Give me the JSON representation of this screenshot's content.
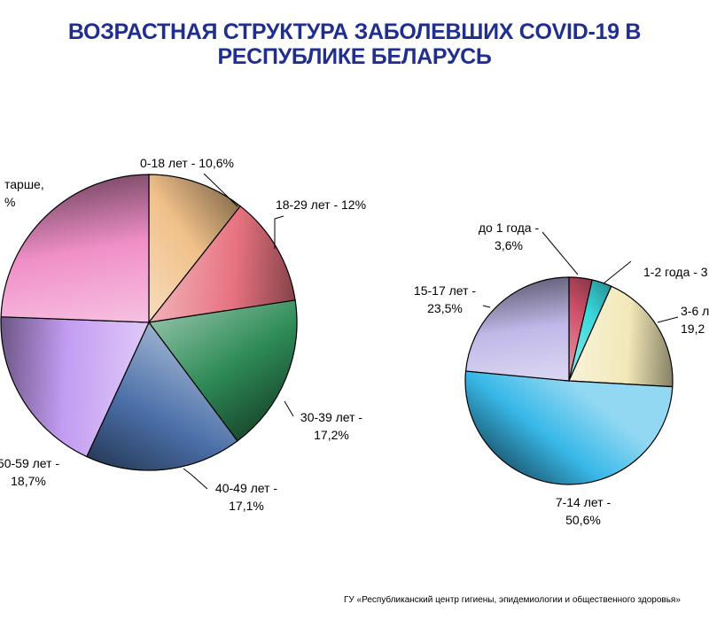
{
  "title": {
    "line1": "ВОЗРАСТНАЯ СТРУКТУРА ЗАБОЛЕВШИХ COVID-19 В",
    "line2": "РЕСПУБЛИКЕ БЕЛАРУСЬ"
  },
  "footer": "ГУ «Республиканский центр гигиены, эпидемиологии и общественного здоровья»",
  "chart_data": [
    {
      "type": "pie",
      "slices": [
        {
          "label": [
            "0-18 лет - 10,6%"
          ],
          "value": 10.6,
          "color": "#f0c089"
        },
        {
          "label": [
            "18-29 лет - 12%"
          ],
          "value": 12.0,
          "color": "#e7737f"
        },
        {
          "label": [
            "30-39 лет -",
            "17,2%"
          ],
          "value": 17.2,
          "color": "#2e8b57"
        },
        {
          "label": [
            "40-49  лет -",
            "17,1%"
          ],
          "value": 17.1,
          "color": "#4a6fa8"
        },
        {
          "label": [
            "50-59 лет -",
            "18,7%"
          ],
          "value": 18.7,
          "color": "#c39cf2"
        },
        {
          "label": [
            "тарше,",
            "%"
          ],
          "value": 24.4,
          "color": "#f08fc8"
        }
      ]
    },
    {
      "type": "pie",
      "slices": [
        {
          "label": [
            "до 1 года -",
            "3,6%"
          ],
          "value": 3.6,
          "color": "#d0506a"
        },
        {
          "label": [
            "1-2 года - 3"
          ],
          "value": 3.1,
          "color": "#38d8dc"
        },
        {
          "label": [
            "3-6 л",
            "19,2"
          ],
          "value": 19.2,
          "color": "#f2e8b8"
        },
        {
          "label": [
            "7-14 лет -",
            "50,6%"
          ],
          "value": 50.6,
          "color": "#38b8e8"
        },
        {
          "label": [
            "15-17 лет -",
            "23,5%"
          ],
          "value": 23.5,
          "color": "#c0b8e8"
        }
      ]
    }
  ]
}
